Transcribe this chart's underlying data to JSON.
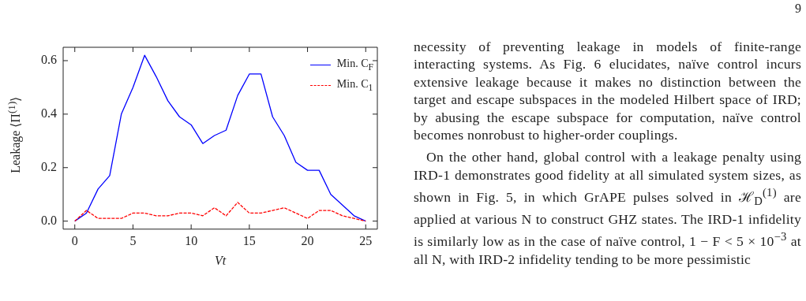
{
  "chart_data": {
    "type": "line",
    "xlabel": "Vt",
    "ylabel": "Leakage ⟨Π$^{(1)}$⟩",
    "x": [
      0,
      1,
      2,
      3,
      4,
      5,
      6,
      7,
      8,
      9,
      10,
      11,
      12,
      13,
      14,
      15,
      16,
      17,
      18,
      19,
      20,
      21,
      22,
      23,
      24,
      25
    ],
    "series": [
      {
        "name": "Min. C$_{F}$",
        "color": "#0000ff",
        "line_style": "solid",
        "values": [
          0,
          0.03,
          0.12,
          0.17,
          0.4,
          0.5,
          0.62,
          0.54,
          0.45,
          0.39,
          0.36,
          0.29,
          0.32,
          0.34,
          0.47,
          0.55,
          0.55,
          0.39,
          0.32,
          0.22,
          0.19,
          0.19,
          0.1,
          0.06,
          0.02,
          0.0
        ]
      },
      {
        "name": "Min. C$_{1}$",
        "color": "#ff0000",
        "line_style": "dashed",
        "values": [
          0,
          0.04,
          0.01,
          0.01,
          0.01,
          0.03,
          0.03,
          0.02,
          0.02,
          0.03,
          0.03,
          0.02,
          0.05,
          0.02,
          0.07,
          0.03,
          0.03,
          0.04,
          0.05,
          0.03,
          0.01,
          0.04,
          0.04,
          0.02,
          0.01,
          0.0
        ]
      }
    ],
    "xlim": [
      -1,
      26
    ],
    "xticks": [
      0,
      5,
      10,
      15,
      20,
      25
    ],
    "ylim": [
      -0.03,
      0.65
    ],
    "yticks": [
      {
        "value": 0,
        "label": "0.0"
      },
      {
        "value": 0.2,
        "label": "0.2"
      },
      {
        "value": 0.4,
        "label": "0.4"
      },
      {
        "value": 0.6,
        "label": "0.6"
      }
    ],
    "grid": false,
    "legend": "top right",
    "marker": "none",
    "annotations": [
      "9",
      "necessity of preventing leakage in models of finite-range interacting systems. As Fig. 6 elucidates, naïve control incurs extensive leakage because it makes no distinction between the target and escape subspaces in the modeled Hilbert space of IRD; by abusing the escape subspace for computation, naïve control becomes nonrobust to higher-order couplings.",
      "On the other hand, global control with a leakage penalty using IRD-1 demonstrates good fidelity at all simulated system sizes, as shown in Fig. 5, in which GrAPE pulses solved in ℋ$_{D}$$^{(1)}$ are applied at various N to construct GHZ states. The IRD-1 infidelity is similarly low as in the case of naïve control, 1 − F < 5 × 10$^{−3}$ at all N, with IRD-2 infidelity tending to be more pessimistic"
    ]
  }
}
